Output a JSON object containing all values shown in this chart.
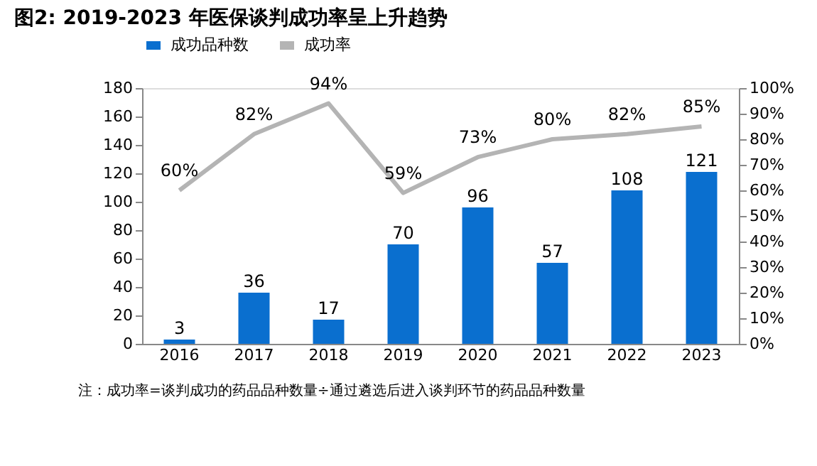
{
  "chart_data": {
    "type": "bar",
    "title": "图2:  2019-2023 年医保谈判成功率呈上升趋势",
    "categories": [
      "2016",
      "2017",
      "2018",
      "2019",
      "2020",
      "2021",
      "2022",
      "2023"
    ],
    "series": [
      {
        "name": "成功品种数",
        "color": "#0a6fcf",
        "values": [
          3,
          36,
          17,
          70,
          96,
          57,
          108,
          121
        ]
      },
      {
        "name": "成功率",
        "type": "line",
        "axis": "y2",
        "color": "#b4b4b4",
        "values": [
          60,
          82,
          94,
          59,
          73,
          80,
          82,
          85
        ],
        "value_labels": [
          "60%",
          "82%",
          "94%",
          "59%",
          "73%",
          "80%",
          "82%",
          "85%"
        ]
      }
    ],
    "ylim": [
      0,
      180
    ],
    "yticks": [
      0,
      20,
      40,
      60,
      80,
      100,
      120,
      140,
      160,
      180
    ],
    "y2lim": [
      0,
      100
    ],
    "y2ticks": [
      {
        "value": 0,
        "label": "0%"
      },
      {
        "value": 10,
        "label": "10%"
      },
      {
        "value": 20,
        "label": "20%"
      },
      {
        "value": 30,
        "label": "30%"
      },
      {
        "value": 40,
        "label": "40%"
      },
      {
        "value": 50,
        "label": "50%"
      },
      {
        "value": 60,
        "label": "60%"
      },
      {
        "value": 70,
        "label": "70%"
      },
      {
        "value": 80,
        "label": "80%"
      },
      {
        "value": 90,
        "label": "90%"
      },
      {
        "value": 100,
        "label": "100%"
      }
    ],
    "data_labels": true,
    "grid": false,
    "legend": "top",
    "marker": "none",
    "line_style": "solid",
    "annotations": [
      "注：成功率=谈判成功的药品品种数量÷通过遴选后进入谈判环节的药品品种数量"
    ]
  }
}
